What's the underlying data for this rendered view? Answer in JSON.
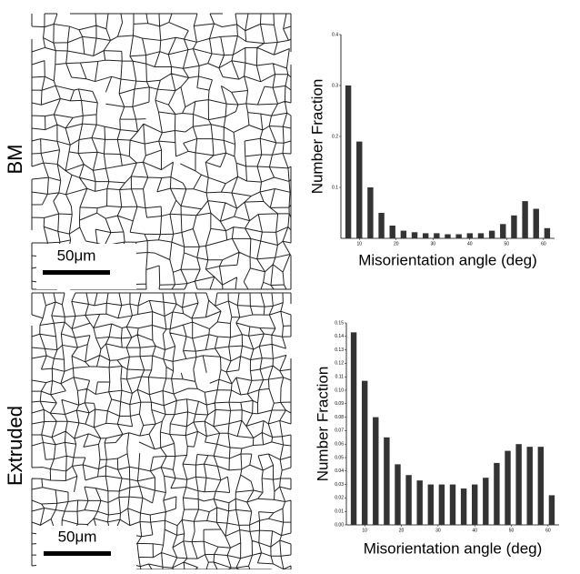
{
  "panels": [
    {
      "label": "BM",
      "scale_bar": "50μm"
    },
    {
      "label": "Extruded",
      "scale_bar": "50μm"
    }
  ],
  "chart_data": [
    {
      "type": "bar",
      "ylabel": "Number Fraction",
      "xlabel": "Misorientation angle (deg)",
      "color": "#333333",
      "x": [
        7,
        10,
        13,
        16,
        19,
        22,
        25,
        28,
        31,
        34,
        37,
        40,
        43,
        46,
        49,
        52,
        55,
        58,
        61
      ],
      "values": [
        0.3,
        0.19,
        0.1,
        0.05,
        0.025,
        0.015,
        0.012,
        0.01,
        0.01,
        0.008,
        0.008,
        0.01,
        0.01,
        0.015,
        0.028,
        0.045,
        0.073,
        0.058,
        0.02
      ],
      "xlim": [
        5,
        63
      ],
      "xticks": [
        10,
        20,
        30,
        40,
        50,
        60
      ],
      "ylim": [
        0,
        0.4
      ],
      "yticks": [
        0.1,
        0.2,
        0.3,
        0.4
      ]
    },
    {
      "type": "bar",
      "ylabel": "Number Fraction",
      "xlabel": "Misorientation angle (deg)",
      "color": "#333333",
      "x": [
        7,
        10,
        13,
        16,
        19,
        22,
        25,
        28,
        31,
        34,
        37,
        40,
        43,
        46,
        49,
        52,
        55,
        58,
        61
      ],
      "values": [
        0.143,
        0.107,
        0.08,
        0.065,
        0.045,
        0.037,
        0.033,
        0.03,
        0.03,
        0.03,
        0.027,
        0.03,
        0.035,
        0.046,
        0.055,
        0.06,
        0.058,
        0.058,
        0.022
      ],
      "xlim": [
        5,
        63
      ],
      "xticks": [
        10,
        20,
        30,
        40,
        50,
        60
      ],
      "ylim": [
        0,
        0.15
      ],
      "yticks": [
        {
          "value": 0,
          "label": "0.00"
        },
        0.01,
        0.02,
        0.03,
        0.04,
        0.05,
        0.06,
        0.07,
        0.08,
        0.09,
        {
          "value": 0.1,
          "label": "0.10"
        },
        0.11,
        0.12,
        0.13,
        0.14,
        0.15
      ]
    }
  ]
}
